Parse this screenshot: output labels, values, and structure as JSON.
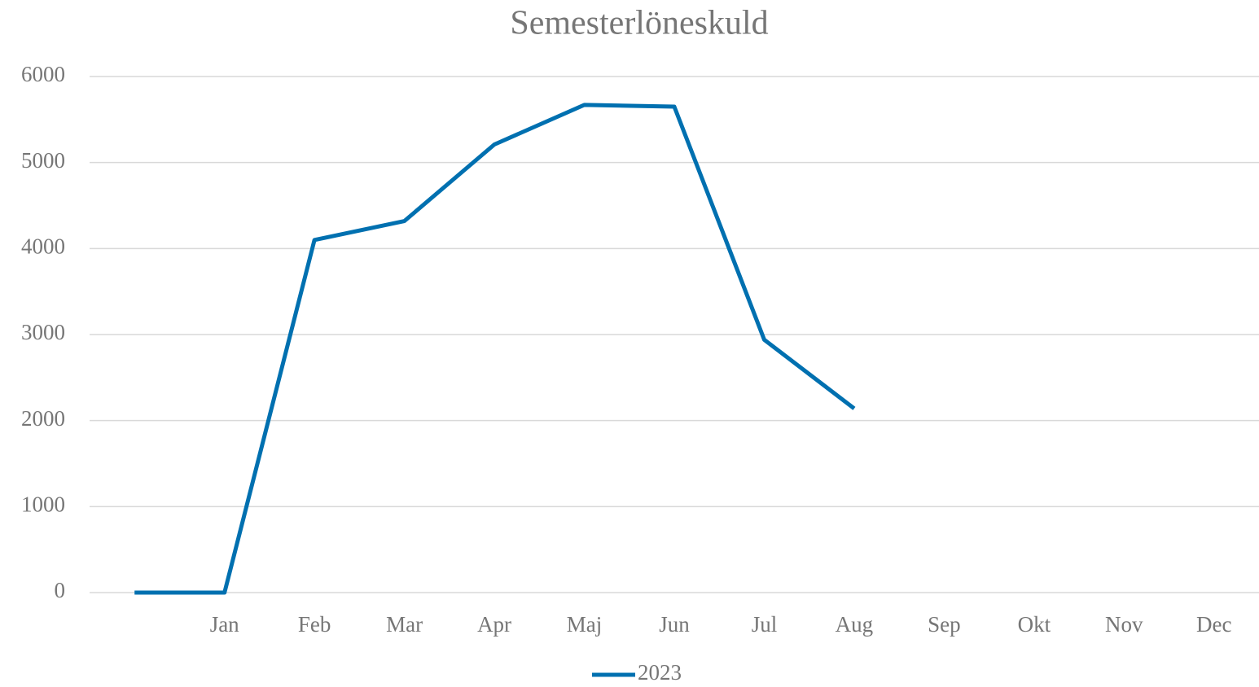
{
  "chart_data": {
    "type": "line",
    "title": "Semesterlöneskuld",
    "categories": [
      null,
      "Jan",
      "Feb",
      "Mar",
      "Apr",
      "Maj",
      "Jun",
      "Jul",
      "Aug",
      "Sep",
      "Okt",
      "Nov",
      "Dec"
    ],
    "series": [
      {
        "name": "2023",
        "color": "#0070b0",
        "values": [
          0,
          0,
          4100,
          4320,
          5210,
          5670,
          5650,
          2940,
          2140,
          null,
          null,
          null,
          null
        ]
      }
    ],
    "ylim": [
      0,
      6000
    ],
    "yticks": [
      0,
      1000,
      2000,
      3000,
      4000,
      5000,
      6000
    ],
    "grid": true,
    "legend": "bottom"
  }
}
